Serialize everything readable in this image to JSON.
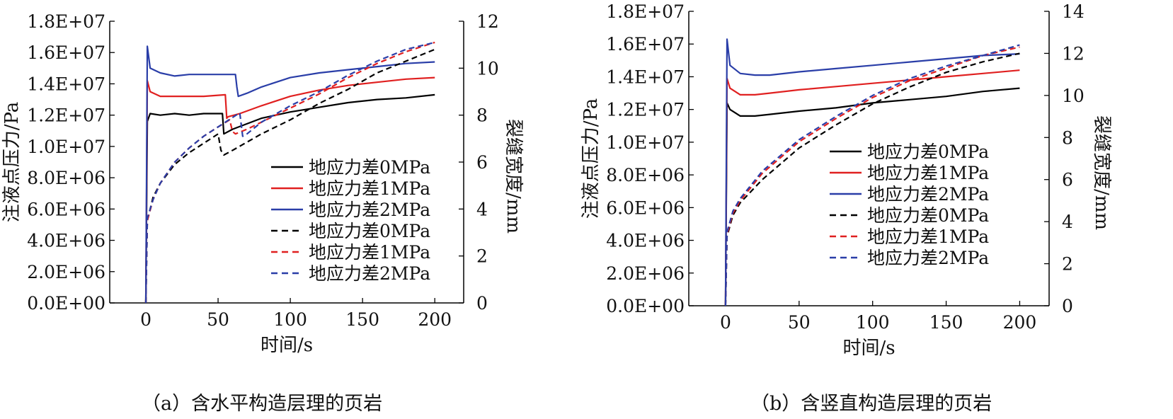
{
  "chart_data": [
    {
      "type": "line",
      "panel": "a",
      "caption": "（a）含水平构造层理的页岩",
      "xlabel": "时间/s",
      "ylabel_left": "注液点压力/Pa",
      "ylabel_right": "裂缝宽度/mm",
      "xlim": [
        -25,
        220
      ],
      "ylim_left": [
        0,
        18000000
      ],
      "ylim_right": [
        0,
        12
      ],
      "x_ticks": [
        "0",
        "50",
        "100",
        "150",
        "200"
      ],
      "y_left_ticks": [
        "0.0E+00",
        "2.0E+06",
        "4.0E+06",
        "6.0E+06",
        "8.0E+06",
        "1.0E+07",
        "1.2E+07",
        "1.4E+07",
        "1.6E+07",
        "1.8E+07"
      ],
      "y_right_ticks": [
        "0",
        "2",
        "4",
        "6",
        "8",
        "10",
        "12"
      ],
      "legend_position": "bottom-right",
      "series": [
        {
          "name": "地应力差0MPa",
          "axis": "left",
          "style": "solid",
          "color": "#000000",
          "x": [
            0,
            1,
            3,
            10,
            20,
            30,
            40,
            53,
            54,
            60,
            80,
            100,
            120,
            140,
            160,
            180,
            200
          ],
          "y": [
            0,
            11600000,
            12100000,
            12000000,
            12100000,
            12000000,
            12100000,
            12100000,
            10800000,
            11100000,
            11800000,
            12200000,
            12500000,
            12800000,
            13000000,
            13100000,
            13300000
          ]
        },
        {
          "name": "地应力差1MPa",
          "axis": "left",
          "style": "solid",
          "color": "#e02020",
          "x": [
            0,
            1,
            3,
            10,
            20,
            30,
            40,
            55,
            56,
            57,
            65,
            80,
            100,
            120,
            140,
            160,
            180,
            200
          ],
          "y": [
            0,
            14200000,
            13500000,
            13200000,
            13200000,
            13200000,
            13200000,
            13300000,
            11800000,
            11900000,
            12100000,
            12600000,
            13200000,
            13600000,
            13900000,
            14100000,
            14300000,
            14400000
          ]
        },
        {
          "name": "地应力差2MPa",
          "axis": "left",
          "style": "solid",
          "color": "#2a3ea8",
          "x": [
            0,
            1,
            3,
            10,
            20,
            30,
            45,
            62,
            63,
            64,
            70,
            80,
            100,
            120,
            140,
            160,
            180,
            200
          ],
          "y": [
            0,
            16400000,
            15000000,
            14700000,
            14500000,
            14600000,
            14600000,
            14600000,
            13800000,
            13200000,
            13400000,
            13800000,
            14400000,
            14700000,
            14900000,
            15100000,
            15300000,
            15400000
          ]
        },
        {
          "name": "地应力差0MPa",
          "axis": "right",
          "style": "dashed",
          "color": "#000000",
          "x": [
            0,
            1,
            5,
            10,
            20,
            30,
            40,
            50,
            52,
            54,
            60,
            80,
            100,
            120,
            140,
            160,
            180,
            200
          ],
          "y": [
            0,
            3.5,
            4.5,
            5.1,
            5.9,
            6.4,
            6.8,
            7.2,
            6.5,
            6.3,
            6.5,
            7.2,
            7.8,
            8.5,
            9.1,
            9.8,
            10.3,
            10.8
          ]
        },
        {
          "name": "地应力差1MPa",
          "axis": "right",
          "style": "dashed",
          "color": "#e02020",
          "x": [
            0,
            1,
            5,
            10,
            20,
            30,
            40,
            50,
            58,
            60,
            62,
            70,
            80,
            100,
            120,
            140,
            160,
            180,
            200
          ],
          "y": [
            0,
            3.5,
            4.4,
            5.1,
            6.0,
            6.6,
            7.1,
            7.5,
            7.8,
            7.3,
            7.2,
            7.4,
            7.7,
            8.3,
            8.9,
            9.6,
            10.2,
            10.7,
            11.1
          ]
        },
        {
          "name": "地应力差2MPa",
          "axis": "right",
          "style": "dashed",
          "color": "#2a3ea8",
          "x": [
            0,
            1,
            5,
            10,
            20,
            30,
            40,
            50,
            60,
            65,
            67,
            70,
            80,
            100,
            120,
            140,
            160,
            180,
            200
          ],
          "y": [
            0,
            3.6,
            4.4,
            5.1,
            6.0,
            6.6,
            7.1,
            7.5,
            7.9,
            8.1,
            7.1,
            7.2,
            7.7,
            8.4,
            9.0,
            9.7,
            10.3,
            10.8,
            11.1
          ]
        }
      ]
    },
    {
      "type": "line",
      "panel": "b",
      "caption": "（b）含竖直构造层理的页岩",
      "xlabel": "时间/s",
      "ylabel_left": "注液点压力/Pa",
      "ylabel_right": "裂缝宽度/mm",
      "xlim": [
        -25,
        220
      ],
      "ylim_left": [
        0,
        18000000
      ],
      "ylim_right": [
        0,
        14
      ],
      "x_ticks": [
        "0",
        "50",
        "100",
        "150",
        "200"
      ],
      "y_left_ticks": [
        "0.0E+00",
        "2.0E+06",
        "4.0E+06",
        "6.0E+06",
        "8.0E+06",
        "1.0E+07",
        "1.2E+07",
        "1.4E+07",
        "1.6E+07",
        "1.8E+07"
      ],
      "y_right_ticks": [
        "0",
        "2",
        "4",
        "6",
        "8",
        "10",
        "12",
        "14"
      ],
      "legend_position": "center-right",
      "series": [
        {
          "name": "地应力差0MPa",
          "axis": "left",
          "style": "solid",
          "color": "#000000",
          "x": [
            0,
            1,
            3,
            10,
            20,
            30,
            50,
            75,
            100,
            125,
            150,
            175,
            200
          ],
          "y": [
            0,
            12400000,
            12000000,
            11600000,
            11600000,
            11700000,
            11900000,
            12100000,
            12400000,
            12600000,
            12800000,
            13100000,
            13300000
          ]
        },
        {
          "name": "地应力差1MPa",
          "axis": "left",
          "style": "solid",
          "color": "#e02020",
          "x": [
            0,
            1,
            3,
            10,
            20,
            30,
            50,
            75,
            100,
            125,
            150,
            175,
            200
          ],
          "y": [
            0,
            13900000,
            13300000,
            12900000,
            12900000,
            13000000,
            13200000,
            13400000,
            13600000,
            13800000,
            14000000,
            14200000,
            14400000
          ]
        },
        {
          "name": "地应力差2MPa",
          "axis": "left",
          "style": "solid",
          "color": "#2a3ea8",
          "x": [
            0,
            1,
            3,
            10,
            20,
            30,
            50,
            75,
            100,
            125,
            150,
            175,
            200
          ],
          "y": [
            0,
            16300000,
            14700000,
            14200000,
            14100000,
            14100000,
            14300000,
            14500000,
            14700000,
            14900000,
            15100000,
            15300000,
            15400000
          ]
        },
        {
          "name": "地应力差0MPa",
          "axis": "right",
          "style": "dashed",
          "color": "#000000",
          "x": [
            0,
            1,
            5,
            10,
            25,
            50,
            75,
            100,
            125,
            150,
            175,
            200
          ],
          "y": [
            0,
            3.3,
            4.3,
            4.9,
            6.0,
            7.5,
            8.6,
            9.6,
            10.4,
            11.1,
            11.6,
            12.0
          ]
        },
        {
          "name": "地应力差1MPa",
          "axis": "right",
          "style": "dashed",
          "color": "#e02020",
          "x": [
            0,
            1,
            5,
            10,
            25,
            50,
            75,
            100,
            125,
            150,
            175,
            200
          ],
          "y": [
            0,
            3.4,
            4.4,
            5.0,
            6.3,
            7.8,
            8.9,
            9.9,
            10.7,
            11.3,
            11.9,
            12.3
          ]
        },
        {
          "name": "地应力差2MPa",
          "axis": "right",
          "style": "dashed",
          "color": "#2a3ea8",
          "x": [
            0,
            1,
            5,
            10,
            25,
            50,
            75,
            100,
            125,
            150,
            175,
            200
          ],
          "y": [
            0,
            3.5,
            4.5,
            5.1,
            6.4,
            7.9,
            9.0,
            10.0,
            10.8,
            11.4,
            11.9,
            12.4
          ]
        }
      ]
    }
  ]
}
